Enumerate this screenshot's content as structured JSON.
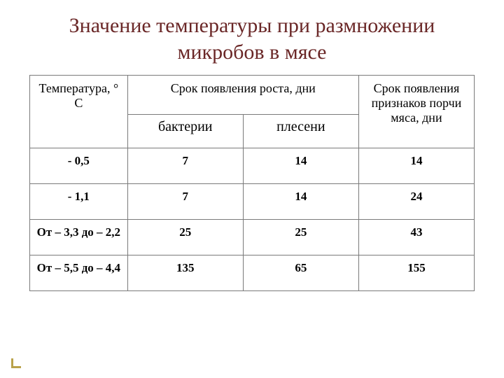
{
  "title_color": "#6a2727",
  "corner_color": "#b9a24a",
  "border_color": "#7a7a7a",
  "background_color": "#ffffff",
  "title": "Значение температуры при размножении микробов в мясе",
  "table": {
    "col_widths_pct": [
      22,
      26,
      26,
      26
    ],
    "header": {
      "col1": "Температура, ° С",
      "col2_group": "Срок появления роста, дни",
      "col2a": "бактерии",
      "col2b": "плесени",
      "col3": "Срок появления признаков порчи мяса, дни"
    },
    "rows": [
      {
        "temp": "- 0,5",
        "bacteria": "7",
        "mold": "14",
        "spoilage": "14"
      },
      {
        "temp": "- 1,1",
        "bacteria": "7",
        "mold": "14",
        "spoilage": "24"
      },
      {
        "temp": "От – 3,3 до – 2,2",
        "bacteria": "25",
        "mold": "25",
        "spoilage": "43"
      },
      {
        "temp": "От – 5,5 до – 4,4",
        "bacteria": "135",
        "mold": "65",
        "spoilage": "155"
      }
    ]
  }
}
